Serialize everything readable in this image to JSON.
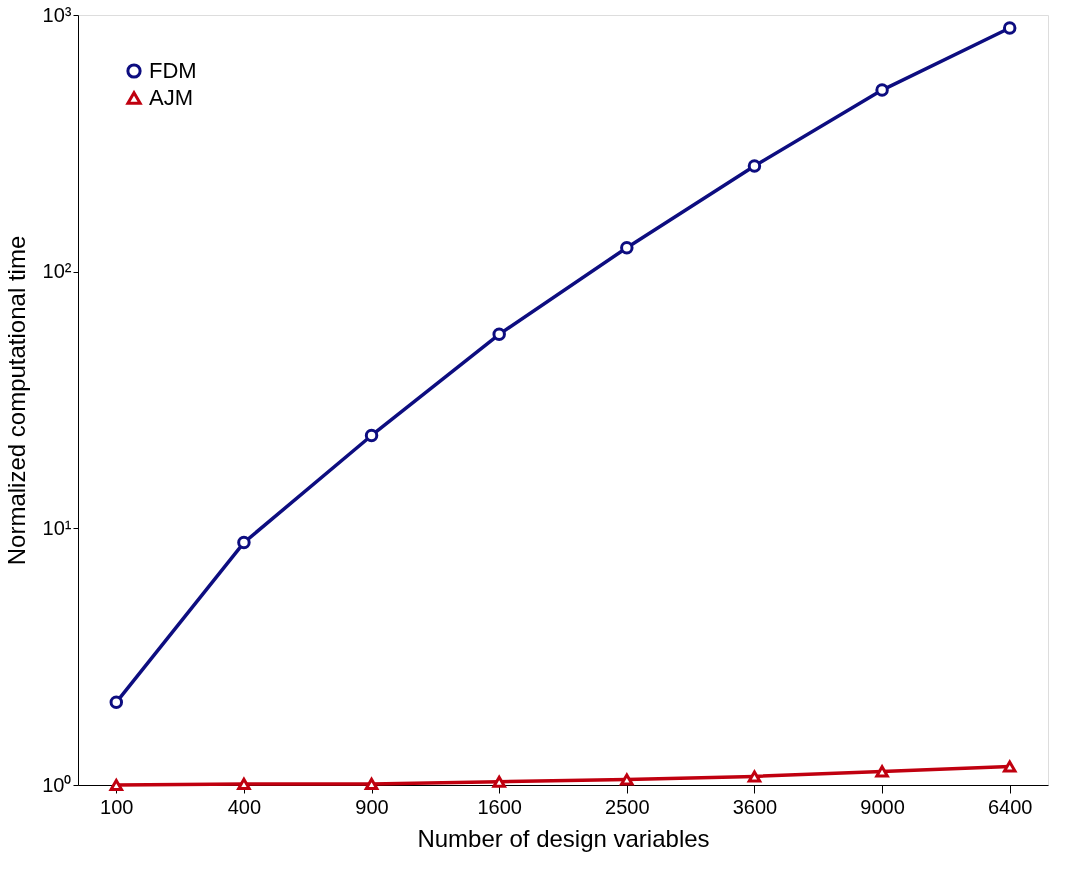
{
  "chart_data": {
    "type": "line",
    "xlabel": "Number of design variables",
    "ylabel": "Normalized computational time",
    "categories": [
      "100",
      "400",
      "900",
      "1600",
      "2500",
      "3600",
      "9000",
      "6400"
    ],
    "log": "y",
    "ylim": [
      1,
      1000
    ],
    "yticks": [
      {
        "value": 1,
        "label": "10⁰"
      },
      {
        "value": 10,
        "label": "10¹"
      },
      {
        "value": 100,
        "label": "10²"
      },
      {
        "value": 1000,
        "label": "10³"
      }
    ],
    "series": [
      {
        "name": "FDM",
        "color": "#0d0d80",
        "marker": "circle",
        "values": [
          2.1,
          8.8,
          23,
          57,
          124,
          258,
          510,
          890
        ]
      },
      {
        "name": "AJM",
        "color": "#c0000f",
        "marker": "triangle",
        "values": [
          1.0,
          1.01,
          1.01,
          1.03,
          1.05,
          1.08,
          1.13,
          1.18
        ]
      }
    ],
    "legend": "top left",
    "grid": false,
    "line_style": "solid"
  }
}
